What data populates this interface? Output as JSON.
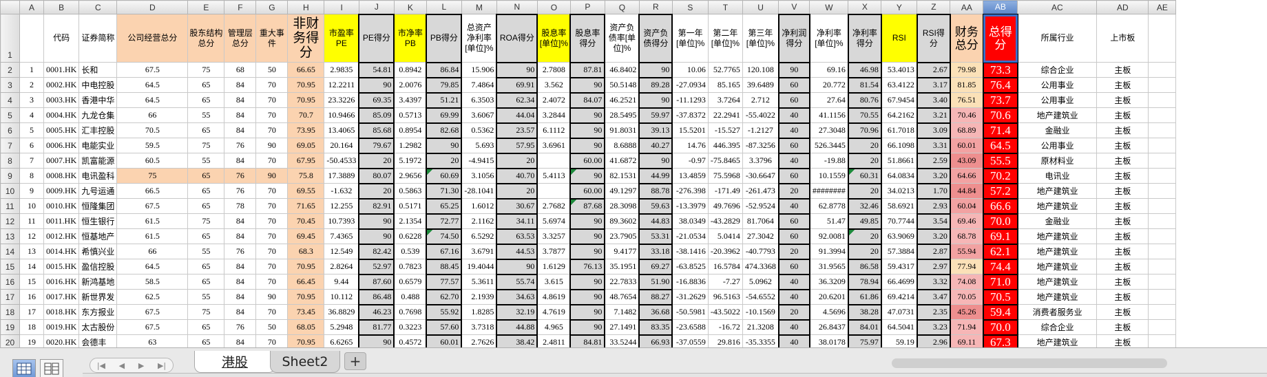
{
  "columns": [
    "A",
    "B",
    "C",
    "D",
    "E",
    "F",
    "G",
    "H",
    "I",
    "J",
    "K",
    "L",
    "M",
    "N",
    "O",
    "P",
    "Q",
    "R",
    "S",
    "T",
    "U",
    "V",
    "W",
    "X",
    "Y",
    "Z",
    "AA",
    "AB",
    "AC",
    "AD",
    "AE"
  ],
  "selected_column": "AB",
  "header_row_number": "1",
  "fields": [
    "",
    "代码",
    "证券简称",
    "公司经营总分",
    "股东结构总分",
    "管理层总分",
    "重大事件",
    "非财务得分",
    "市盈率PE",
    "PE得分",
    "市净率PB",
    "PB得分",
    "总资产净利率[单位]%",
    "ROA得分",
    "股息率[单位]%",
    "股息率得分",
    "资产负债率[单位]%",
    "资产负债得分",
    "第一年[单位]%",
    "第二年[单位]%",
    "第三年[单位]%",
    "净利润得分",
    "净利率[单位]%",
    "净利率得分",
    "RSI",
    "RSI得分",
    "财务总分",
    "总得分",
    "所属行业",
    "上市板",
    ""
  ],
  "rows": [
    {
      "n": "2",
      "cells": [
        "1",
        "0001.HK",
        "长和",
        "67.5",
        "75",
        "68",
        "50",
        "66.65",
        "2.9835",
        "54.81",
        "0.8942",
        "86.84",
        "15.906",
        "90",
        "2.7808",
        "87.81",
        "46.8402",
        "90",
        "10.06",
        "52.7765",
        "120.108",
        "90",
        "69.16",
        "46.98",
        "53.4013",
        "2.67",
        "79.98",
        "73.3",
        "综合企业",
        "主板",
        ""
      ]
    },
    {
      "n": "3",
      "cells": [
        "2",
        "0002.HK",
        "中电控股",
        "64.5",
        "65",
        "84",
        "70",
        "70.95",
        "12.2211",
        "90",
        "2.0076",
        "79.85",
        "7.4864",
        "69.91",
        "3.562",
        "90",
        "50.5148",
        "89.28",
        "-27.0934",
        "85.165",
        "39.6489",
        "60",
        "20.772",
        "81.54",
        "63.4122",
        "3.17",
        "81.85",
        "76.4",
        "公用事业",
        "主板",
        ""
      ]
    },
    {
      "n": "4",
      "cells": [
        "3",
        "0003.HK",
        "香港中华",
        "64.5",
        "65",
        "84",
        "70",
        "70.95",
        "23.3226",
        "69.35",
        "3.4397",
        "51.21",
        "6.3503",
        "62.34",
        "2.4072",
        "84.07",
        "46.2521",
        "90",
        "-11.1293",
        "3.7264",
        "2.712",
        "60",
        "27.64",
        "80.76",
        "67.9454",
        "3.40",
        "76.51",
        "73.7",
        "公用事业",
        "主板",
        ""
      ]
    },
    {
      "n": "5",
      "cells": [
        "4",
        "0004.HK",
        "九龙仓集",
        "66",
        "55",
        "84",
        "70",
        "70.7",
        "10.9466",
        "85.09",
        "0.5713",
        "69.99",
        "3.6067",
        "44.04",
        "3.2844",
        "90",
        "28.5495",
        "59.97",
        "-37.8372",
        "22.2941",
        "-55.4022",
        "40",
        "41.1156",
        "70.55",
        "64.2162",
        "3.21",
        "70.46",
        "70.6",
        "地产建筑业",
        "主板",
        ""
      ]
    },
    {
      "n": "6",
      "cells": [
        "5",
        "0005.HK",
        "汇丰控股",
        "70.5",
        "65",
        "84",
        "70",
        "73.95",
        "13.4065",
        "85.68",
        "0.8954",
        "82.68",
        "0.5362",
        "23.57",
        "6.1112",
        "90",
        "91.8031",
        "39.13",
        "15.5201",
        "-15.527",
        "-1.2127",
        "40",
        "27.3048",
        "70.96",
        "61.7018",
        "3.09",
        "68.89",
        "71.4",
        "金融业",
        "主板",
        ""
      ]
    },
    {
      "n": "7",
      "cells": [
        "6",
        "0006.HK",
        "电能实业",
        "59.5",
        "75",
        "76",
        "90",
        "69.05",
        "20.164",
        "79.67",
        "1.2982",
        "90",
        "5.693",
        "57.95",
        "3.6961",
        "90",
        "8.6888",
        "40.27",
        "14.76",
        "446.395",
        "-87.3256",
        "60",
        "526.3445",
        "20",
        "66.1098",
        "3.31",
        "60.01",
        "64.5",
        "公用事业",
        "主板",
        ""
      ]
    },
    {
      "n": "8",
      "cells": [
        "7",
        "0007.HK",
        "凯富能源",
        "60.5",
        "55",
        "84",
        "70",
        "67.95",
        "-50.4533",
        "20",
        "5.1972",
        "20",
        "-4.9415",
        "20",
        "",
        "60.00",
        "41.6872",
        "90",
        "-0.97",
        "-75.8465",
        "3.3796",
        "40",
        "-19.88",
        "20",
        "51.8661",
        "2.59",
        "43.09",
        "55.5",
        "原材料业",
        "主板",
        ""
      ]
    },
    {
      "n": "9",
      "cells": [
        "8",
        "0008.HK",
        "电讯盈科",
        "75",
        "65",
        "76",
        "90",
        "75.8",
        "17.3889",
        "80.07",
        "2.9656",
        "60.69",
        "3.1056",
        "40.70",
        "5.4113",
        "90",
        "82.1531",
        "44.99",
        "13.4859",
        "75.5968",
        "-30.6647",
        "60",
        "10.1559",
        "60.31",
        "64.0834",
        "3.20",
        "64.66",
        "70.2",
        "电讯业",
        "主板",
        ""
      ]
    },
    {
      "n": "10",
      "cells": [
        "9",
        "0009.HK",
        "九号运通",
        "66.5",
        "65",
        "76",
        "70",
        "69.55",
        "-1.632",
        "20",
        "0.5863",
        "71.30",
        "-28.1041",
        "20",
        "",
        "60.00",
        "49.1297",
        "88.78",
        "-276.398",
        "-171.49",
        "-261.473",
        "20",
        "########",
        "20",
        "34.0213",
        "1.70",
        "44.84",
        "57.2",
        "地产建筑业",
        "主板",
        ""
      ]
    },
    {
      "n": "11",
      "cells": [
        "10",
        "0010.HK",
        "恒隆集团",
        "67.5",
        "65",
        "78",
        "70",
        "71.65",
        "12.255",
        "82.91",
        "0.5171",
        "65.25",
        "1.6012",
        "30.67",
        "2.7682",
        "87.68",
        "28.3098",
        "59.63",
        "-13.3979",
        "49.7696",
        "-52.9524",
        "40",
        "62.8778",
        "32.46",
        "58.6921",
        "2.93",
        "60.04",
        "66.6",
        "地产建筑业",
        "主板",
        ""
      ]
    },
    {
      "n": "12",
      "cells": [
        "11",
        "0011.HK",
        "恒生银行",
        "61.5",
        "75",
        "84",
        "70",
        "70.45",
        "10.7393",
        "90",
        "2.1354",
        "72.77",
        "2.1162",
        "34.11",
        "5.6974",
        "90",
        "89.3602",
        "44.83",
        "38.0349",
        "-43.2829",
        "81.7064",
        "60",
        "51.47",
        "49.85",
        "70.7744",
        "3.54",
        "69.46",
        "70.0",
        "金融业",
        "主板",
        ""
      ]
    },
    {
      "n": "13",
      "cells": [
        "12",
        "0012.HK",
        "恒基地产",
        "61.5",
        "65",
        "84",
        "70",
        "69.45",
        "7.4365",
        "90",
        "0.6228",
        "74.50",
        "6.5292",
        "63.53",
        "3.3257",
        "90",
        "23.7905",
        "53.31",
        "-21.0534",
        "5.0414",
        "27.3042",
        "60",
        "92.0081",
        "20",
        "63.9069",
        "3.20",
        "68.78",
        "69.1",
        "地产建筑业",
        "主板",
        ""
      ]
    },
    {
      "n": "14",
      "cells": [
        "13",
        "0014.HK",
        "希慎兴业",
        "66",
        "55",
        "76",
        "70",
        "68.3",
        "12.549",
        "82.42",
        "0.539",
        "67.16",
        "3.6791",
        "44.53",
        "3.7877",
        "90",
        "9.4177",
        "33.18",
        "-38.1416",
        "-20.3962",
        "-40.7793",
        "20",
        "91.3994",
        "20",
        "57.3884",
        "2.87",
        "55.94",
        "62.1",
        "地产建筑业",
        "主板",
        ""
      ]
    },
    {
      "n": "15",
      "cells": [
        "14",
        "0015.HK",
        "盈信控股",
        "64.5",
        "65",
        "84",
        "70",
        "70.95",
        "2.8264",
        "52.97",
        "0.7823",
        "88.45",
        "19.4044",
        "90",
        "1.6129",
        "76.13",
        "35.1951",
        "69.27",
        "-63.8525",
        "16.5784",
        "474.3368",
        "60",
        "31.9565",
        "86.58",
        "59.4317",
        "2.97",
        "77.94",
        "74.4",
        "地产建筑业",
        "主板",
        ""
      ]
    },
    {
      "n": "16",
      "cells": [
        "15",
        "0016.HK",
        "新鸿基地",
        "58.5",
        "65",
        "84",
        "70",
        "66.45",
        "9.44",
        "87.60",
        "0.6579",
        "77.57",
        "5.3611",
        "55.74",
        "3.615",
        "90",
        "22.7833",
        "51.90",
        "-16.8836",
        "-7.27",
        "5.0962",
        "40",
        "36.3209",
        "78.94",
        "66.4699",
        "3.32",
        "74.08",
        "71.0",
        "地产建筑业",
        "主板",
        ""
      ]
    },
    {
      "n": "17",
      "cells": [
        "16",
        "0017.HK",
        "新世界发",
        "62.5",
        "55",
        "84",
        "90",
        "70.95",
        "10.112",
        "86.48",
        "0.488",
        "62.70",
        "2.1939",
        "34.63",
        "4.8619",
        "90",
        "48.7654",
        "88.27",
        "-31.2629",
        "96.5163",
        "-54.6552",
        "40",
        "20.6201",
        "61.86",
        "69.4214",
        "3.47",
        "70.05",
        "70.5",
        "地产建筑业",
        "主板",
        ""
      ]
    },
    {
      "n": "18",
      "cells": [
        "17",
        "0018.HK",
        "东方报业",
        "67.5",
        "75",
        "84",
        "70",
        "73.45",
        "36.8829",
        "46.23",
        "0.7698",
        "55.92",
        "1.8285",
        "32.19",
        "4.7619",
        "90",
        "7.1482",
        "36.68",
        "-50.5981",
        "-43.5022",
        "-10.1569",
        "20",
        "4.5696",
        "38.28",
        "47.0731",
        "2.35",
        "45.26",
        "59.4",
        "消费者服务业",
        "主板",
        ""
      ]
    },
    {
      "n": "19",
      "cells": [
        "18",
        "0019.HK",
        "太古股份",
        "67.5",
        "65",
        "76",
        "50",
        "68.05",
        "5.2948",
        "81.77",
        "0.3223",
        "57.60",
        "3.7318",
        "44.88",
        "4.965",
        "90",
        "27.1491",
        "83.35",
        "-23.6588",
        "-16.72",
        "21.3208",
        "40",
        "26.8437",
        "84.01",
        "64.5041",
        "3.23",
        "71.94",
        "70.0",
        "综合企业",
        "主板",
        ""
      ]
    },
    {
      "n": "20",
      "cells": [
        "19",
        "0020.HK",
        "会德丰",
        "63",
        "65",
        "84",
        "70",
        "70.95",
        "6.6265",
        "90",
        "0.4572",
        "60.01",
        "2.7626",
        "38.42",
        "2.4811",
        "84.81",
        "33.5244",
        "66.93",
        "-37.0559",
        "29.816",
        "-35.3355",
        "40",
        "38.0178",
        "75.97",
        "59.19",
        "2.96",
        "69.11",
        "67.3",
        "地产建筑业",
        "主板",
        ""
      ]
    }
  ],
  "sheet_tabs": [
    "港股",
    "Sheet2"
  ],
  "active_tab": "港股",
  "add_tab_label": "+",
  "nav_arrows": [
    "|◀",
    "◀",
    "▶",
    "▶|"
  ],
  "colors": {
    "header_orange": "#fbd3b0",
    "highlight_yellow": "#ffff00",
    "total_red": "#ff0000",
    "score_gray": "#d8d8d8",
    "selection_blue": "#3a6ec8"
  },
  "icons": [
    "normal-view-icon",
    "page-layout-view-icon"
  ]
}
